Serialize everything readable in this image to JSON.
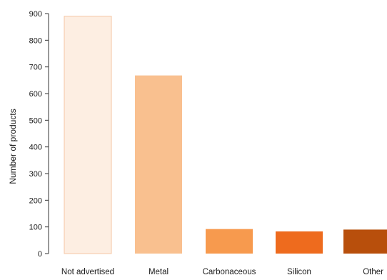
{
  "chart_data": {
    "type": "bar",
    "ylabel": "Number of products",
    "xlabel": "",
    "categories": [
      "Not advertised",
      "Metal",
      "Carbonaceous",
      "Silicon",
      "Other"
    ],
    "values": [
      890,
      668,
      92,
      83,
      90
    ],
    "colors": [
      "#fdeee2",
      "#f9c08f",
      "#f79a4e",
      "#ee6b1e",
      "#b84f0c"
    ],
    "edge_color": "#f5c6a4",
    "ylim": [
      0,
      900
    ],
    "yticks": [
      0,
      100,
      200,
      300,
      400,
      500,
      600,
      700,
      800,
      900
    ],
    "grid": false,
    "legend": "none"
  }
}
